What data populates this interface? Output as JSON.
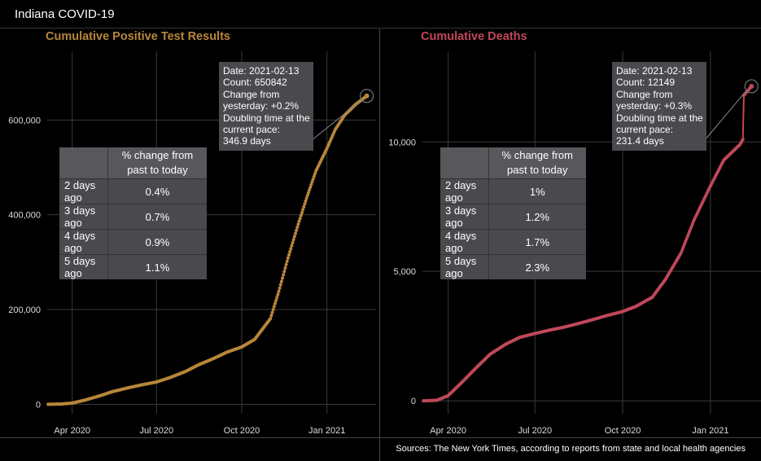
{
  "header": {
    "title": "Indiana COVID-19"
  },
  "footer": {
    "sources": "Sources: The New York Times, according to reports from state and local health agencies"
  },
  "chart_data": [
    {
      "type": "line",
      "title": "Cumulative Positive Test Results",
      "color": "#b8863b",
      "x_ticks": [
        "Apr 2020",
        "Jul 2020",
        "Oct 2020",
        "Jan 2021"
      ],
      "x_tick_dates": [
        "2020-04-01",
        "2020-07-01",
        "2020-10-01",
        "2021-01-01"
      ],
      "y_ticks": [
        "0",
        "200,000",
        "400,000",
        "600,000"
      ],
      "y_tick_values": [
        0,
        200000,
        400000,
        600000
      ],
      "xlim": [
        "2020-03-05",
        "2021-02-23"
      ],
      "ylim": [
        -20000,
        745000
      ],
      "grid": true,
      "series": [
        {
          "x": [
            "2020-03-06",
            "2020-03-20",
            "2020-04-01",
            "2020-04-15",
            "2020-05-01",
            "2020-05-15",
            "2020-06-01",
            "2020-06-15",
            "2020-07-01",
            "2020-07-15",
            "2020-08-01",
            "2020-08-15",
            "2020-09-01",
            "2020-09-15",
            "2020-10-01",
            "2020-10-15",
            "2020-11-01",
            "2020-11-10",
            "2020-11-20",
            "2020-12-01",
            "2020-12-10",
            "2020-12-20",
            "2021-01-01",
            "2021-01-10",
            "2021-01-20",
            "2021-02-01",
            "2021-02-13"
          ],
          "y": [
            0,
            500,
            2500,
            9000,
            18000,
            27000,
            35000,
            41000,
            47000,
            56000,
            69000,
            83000,
            97000,
            110000,
            121000,
            137000,
            181000,
            238000,
            309000,
            380000,
            435000,
            492000,
            540000,
            580000,
            610000,
            633000,
            650842
          ]
        }
      ],
      "tooltip": {
        "date": "Date: 2021-02-13",
        "count": "Count: 650842",
        "change_1": "Change from",
        "change_2": "yesterday: +0.2%",
        "doubling_1": "Doubling time at the",
        "doubling_2": "current pace:",
        "doubling_3": "346.9 days"
      },
      "highlight": {
        "x": "2021-02-13",
        "y": 650842
      },
      "table": {
        "header": "% change from past to today",
        "rows": [
          {
            "label": "2 days ago",
            "value": "0.4%"
          },
          {
            "label": "3 days ago",
            "value": "0.7%"
          },
          {
            "label": "4 days ago",
            "value": "0.9%"
          },
          {
            "label": "5 days ago",
            "value": "1.1%"
          }
        ]
      }
    },
    {
      "type": "line",
      "title": "Cumulative Deaths",
      "color": "#c0485a",
      "x_ticks": [
        "Apr 2020",
        "Jul 2020",
        "Oct 2020",
        "Jan 2021"
      ],
      "x_tick_dates": [
        "2020-04-01",
        "2020-07-01",
        "2020-10-01",
        "2021-01-01"
      ],
      "y_ticks": [
        "0",
        "5,000",
        "10,000"
      ],
      "y_tick_values": [
        0,
        5000,
        10000
      ],
      "xlim": [
        "2020-03-05",
        "2021-02-23"
      ],
      "ylim": [
        -500,
        13500
      ],
      "grid": true,
      "series": [
        {
          "x": [
            "2020-03-06",
            "2020-03-20",
            "2020-04-01",
            "2020-04-15",
            "2020-05-01",
            "2020-05-15",
            "2020-06-01",
            "2020-06-15",
            "2020-07-01",
            "2020-07-15",
            "2020-08-01",
            "2020-08-15",
            "2020-09-01",
            "2020-09-15",
            "2020-10-01",
            "2020-10-15",
            "2020-11-01",
            "2020-11-15",
            "2020-12-01",
            "2020-12-15",
            "2021-01-01",
            "2021-01-15",
            "2021-02-01",
            "2021-02-04",
            "2021-02-05",
            "2021-02-13"
          ],
          "y": [
            0,
            20,
            200,
            700,
            1300,
            1800,
            2200,
            2450,
            2600,
            2720,
            2850,
            2980,
            3150,
            3300,
            3450,
            3650,
            4000,
            4700,
            5700,
            7000,
            8300,
            9300,
            9900,
            10100,
            11800,
            12149
          ]
        }
      ],
      "tooltip": {
        "date": "Date: 2021-02-13",
        "count": "Count: 12149",
        "change_1": "Change from",
        "change_2": "yesterday: +0.3%",
        "doubling_1": "Doubling time at the",
        "doubling_2": "current pace:",
        "doubling_3": "231.4 days"
      },
      "highlight": {
        "x": "2021-02-13",
        "y": 12149
      },
      "table": {
        "header": "% change from past to today",
        "rows": [
          {
            "label": "2 days ago",
            "value": "1%"
          },
          {
            "label": "3 days ago",
            "value": "1.2%"
          },
          {
            "label": "4 days ago",
            "value": "1.7%"
          },
          {
            "label": "5 days ago",
            "value": "2.3%"
          }
        ]
      }
    }
  ]
}
